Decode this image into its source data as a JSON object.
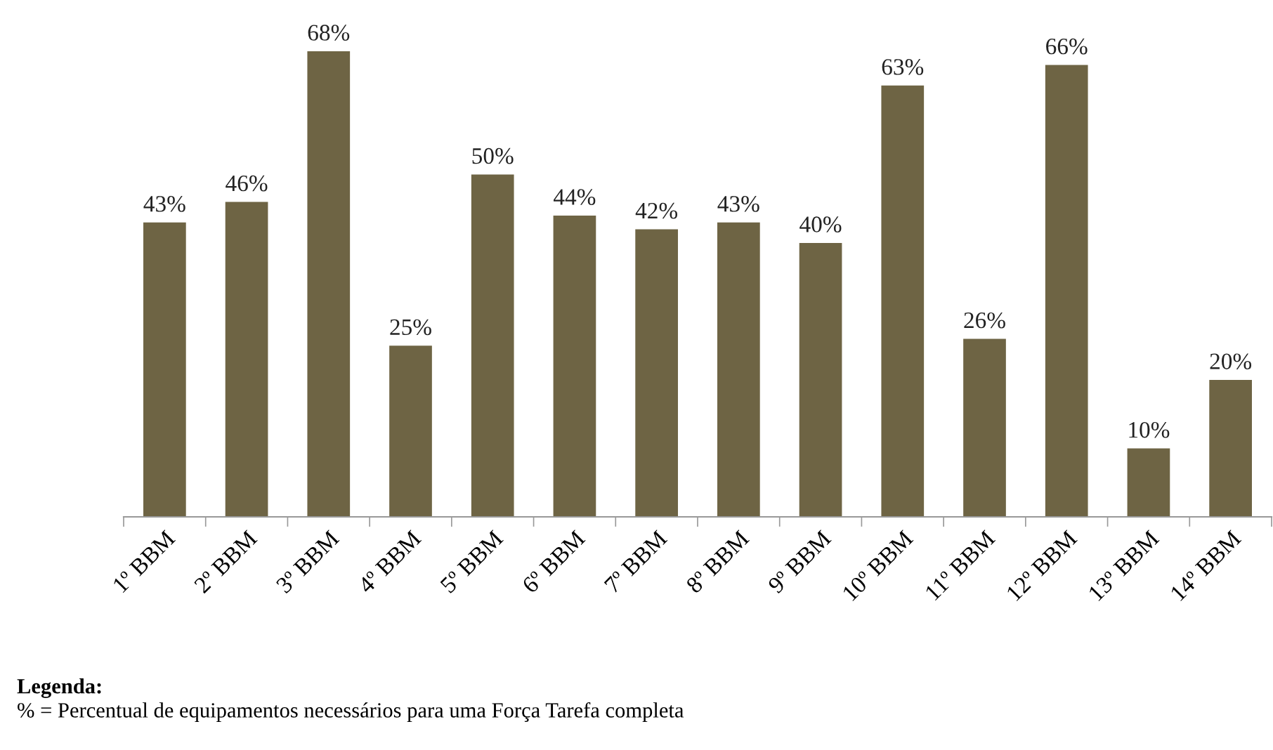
{
  "chart_data": {
    "type": "bar",
    "categories": [
      "1º BBM",
      "2º BBM",
      "3º BBM",
      "4º BBM",
      "5º BBM",
      "6º BBM",
      "7º BBM",
      "8º BBM",
      "9º BBM",
      "10º BBM",
      "11º BBM",
      "12º BBM",
      "13º BBM",
      "14º BBM"
    ],
    "values": [
      43,
      46,
      68,
      25,
      50,
      44,
      42,
      43,
      40,
      63,
      26,
      66,
      10,
      20
    ],
    "value_labels": [
      "43%",
      "46%",
      "68%",
      "25%",
      "50%",
      "44%",
      "42%",
      "43%",
      "40%",
      "63%",
      "26%",
      "66%",
      "10%",
      "20%"
    ],
    "color": "#6e6444",
    "grid": false,
    "legend": false,
    "annotations": [
      "Legenda:",
      "% = Percentual de equipamentos necessários para uma Força Tarefa completa"
    ]
  }
}
